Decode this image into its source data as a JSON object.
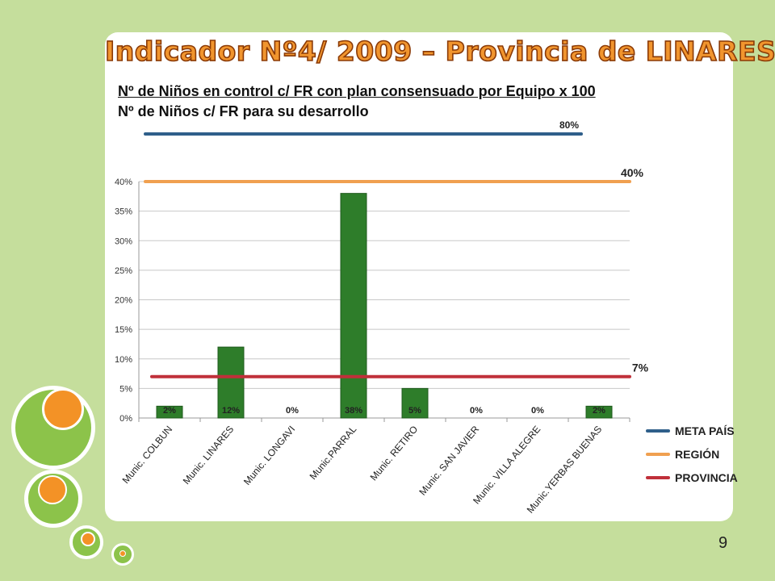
{
  "slide": {
    "title": "Indicador Nº4/ 2009 – Provincia de LINARES",
    "formula_numerator": "Nº de Niños en control c/ FR con plan consensuado por Equipo x 100",
    "formula_denominator": "Nº de Niños c/ FR  para su desarrollo",
    "page_number": "9"
  },
  "colors": {
    "background": "#c5de9c",
    "title": "#f1952e",
    "bar": "#2e7d2a",
    "meta_pais": "#2f5f8a",
    "region": "#f0a050",
    "provincia": "#c0303a"
  },
  "chart_data": {
    "type": "bar",
    "categories": [
      "Munic. COLBUN",
      "Munic. LINARES",
      "Munic. LONGAVI",
      "Munic.PARRAL",
      "Munic. RETIRO",
      "Munic. SAN JAVIER",
      "Munic. VILLA ALEGRE",
      "Munic.YERBAS BUENAS"
    ],
    "values": [
      2,
      12,
      0,
      38,
      5,
      0,
      0,
      2
    ],
    "data_labels": [
      "2%",
      "12%",
      "0%",
      "38%",
      "5%",
      "0%",
      "0%",
      "2%"
    ],
    "ylim": [
      0,
      40
    ],
    "yticks": [
      "0%",
      "5%",
      "10%",
      "15%",
      "20%",
      "25%",
      "30%",
      "35%",
      "40%"
    ],
    "grid": true,
    "reference_lines": [
      {
        "name": "META PAÍS",
        "value": 80,
        "label": "80%"
      },
      {
        "name": "REGIÓN",
        "value": 40,
        "label": "40%"
      },
      {
        "name": "PROVINCIA",
        "value": 7,
        "label": "7%"
      }
    ],
    "legend": [
      "META PAÍS",
      "REGIÓN",
      "PROVINCIA"
    ],
    "legend_position": "right"
  }
}
